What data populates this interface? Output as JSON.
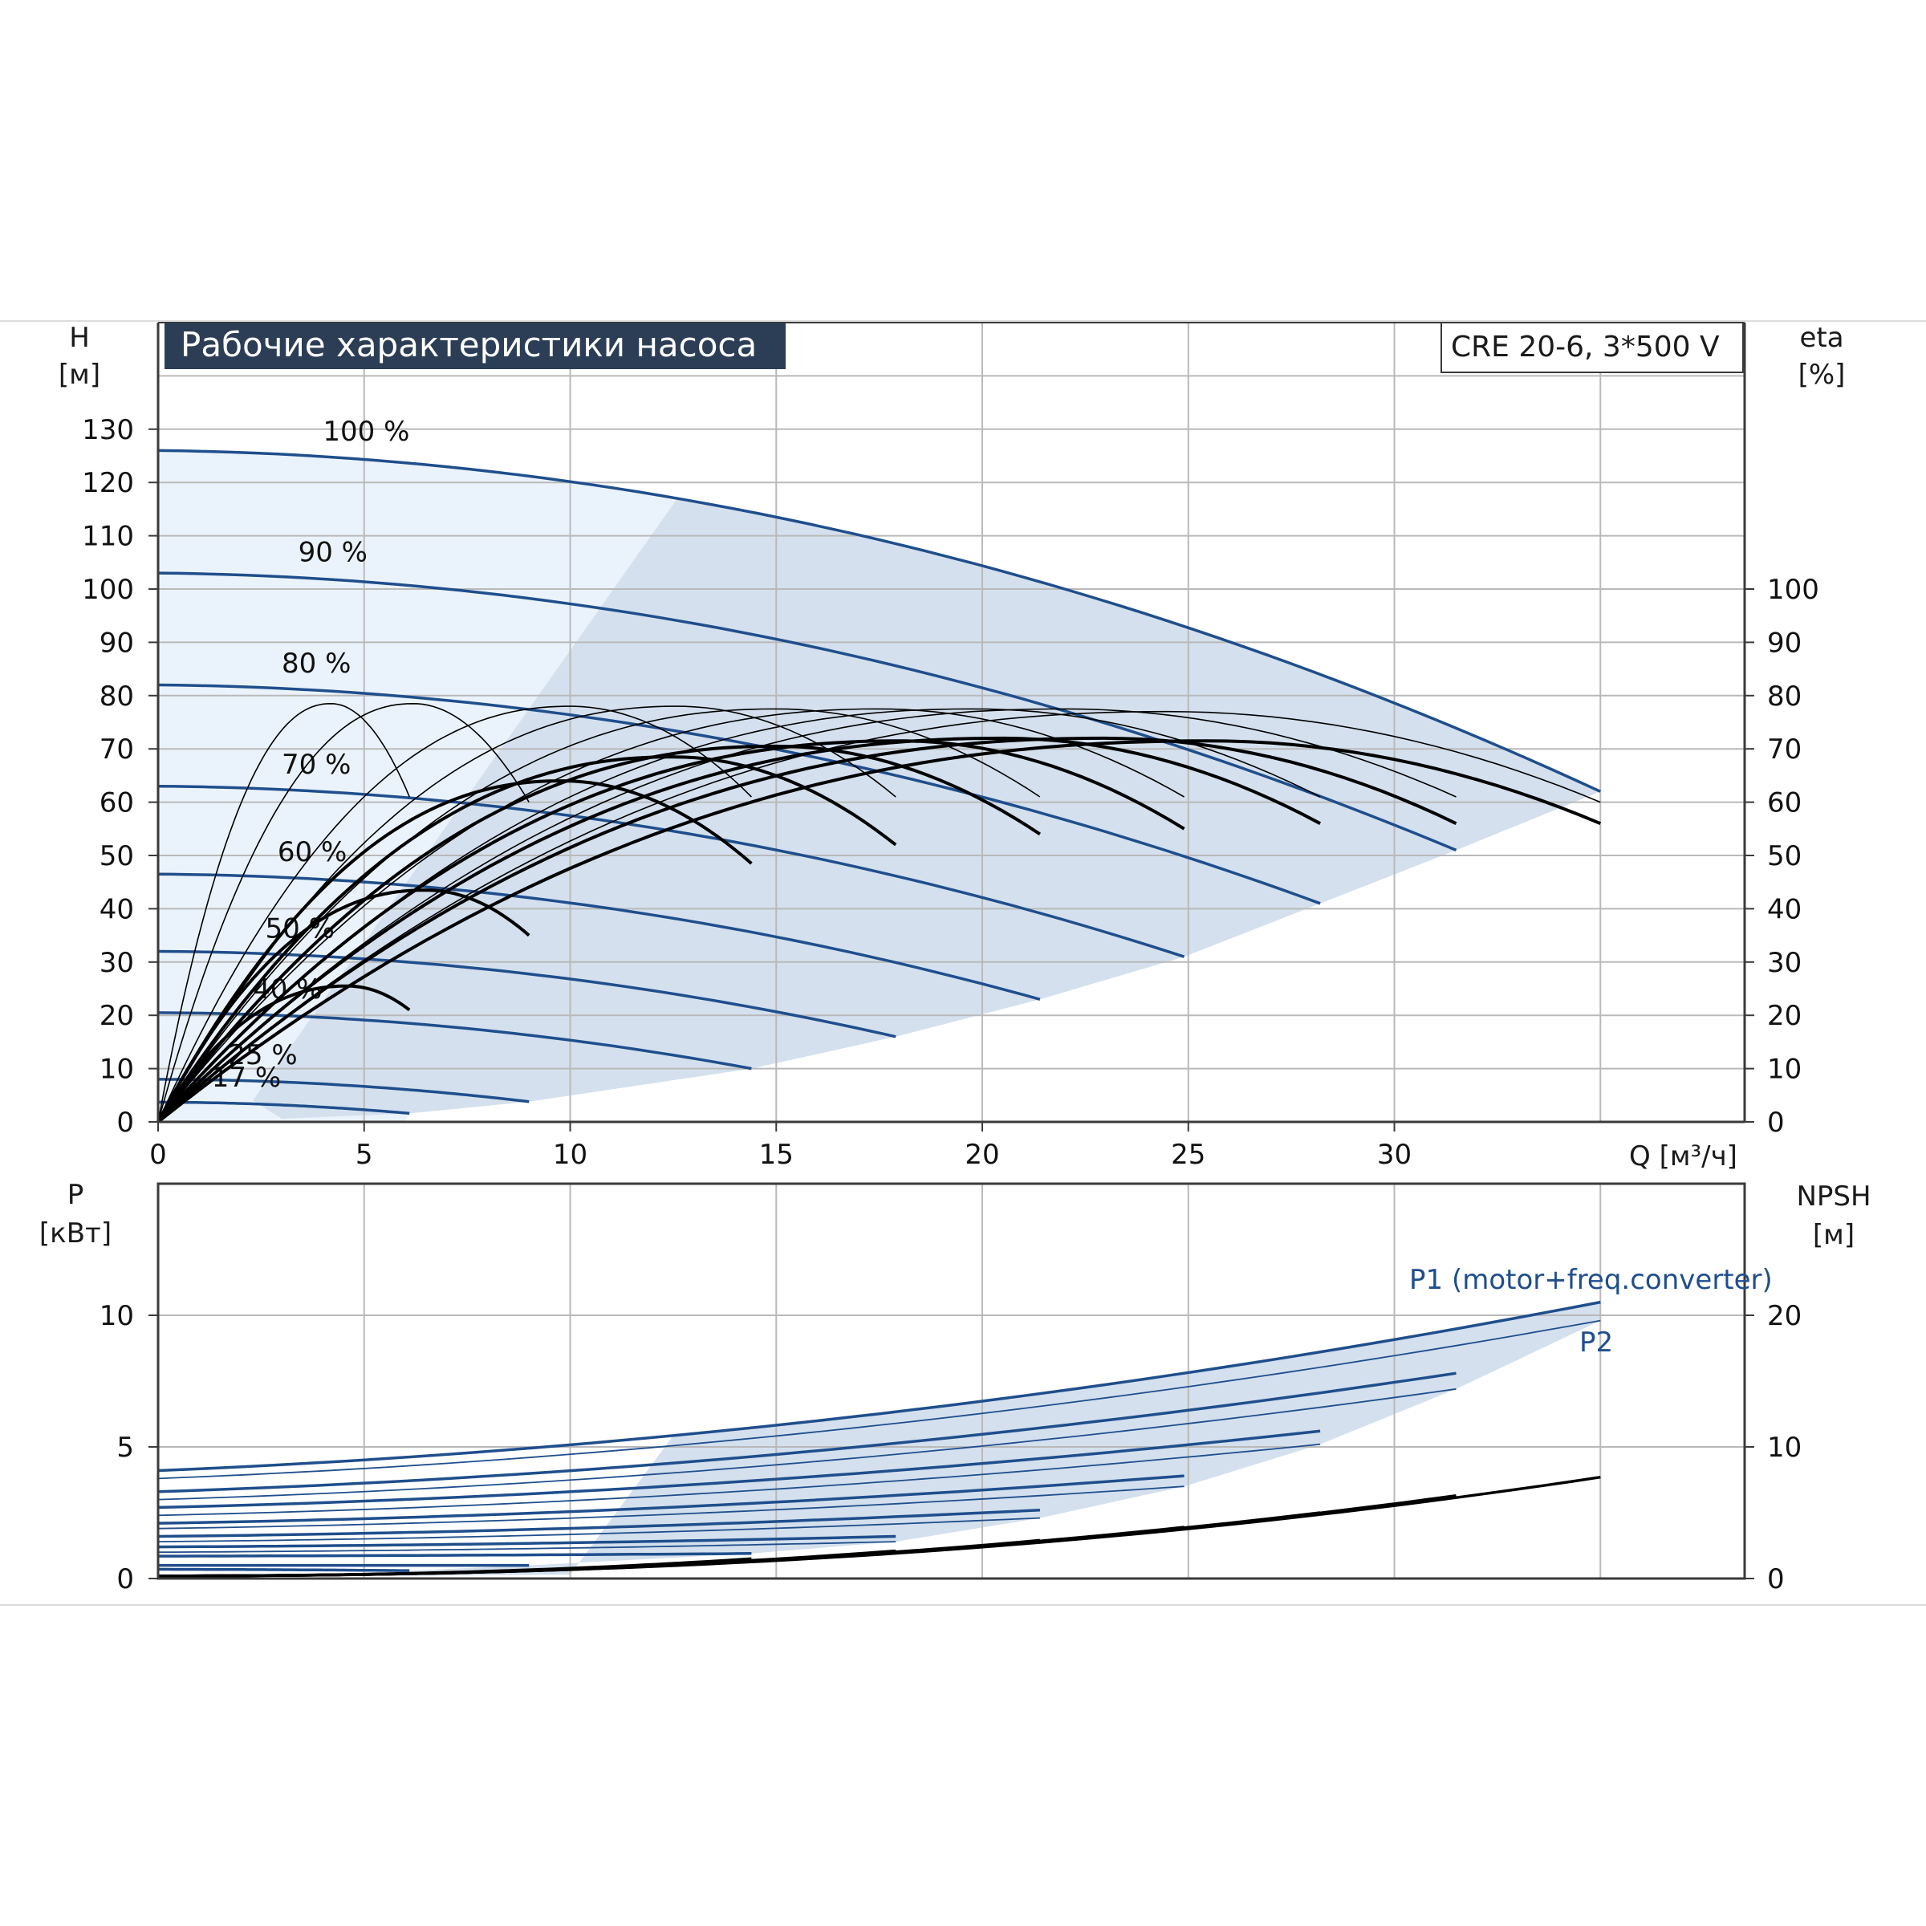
{
  "chart_data": [
    {
      "type": "line",
      "title": "Рабочие характеристики насоса",
      "subtitle": "CRE 20-6, 3*500 V",
      "xlabel": "Q [м³/ч]",
      "ylabel": "H",
      "ylabel_unit": "[м]",
      "y2label": "eta",
      "y2label_unit": "[%]",
      "xlim": [
        0,
        38.5
      ],
      "ylim": [
        0,
        150
      ],
      "y2lim": [
        0,
        150
      ],
      "xticks": [
        "0",
        "5",
        "10",
        "15",
        "20",
        "25",
        "30"
      ],
      "yticks": [
        "0",
        "10",
        "20",
        "30",
        "40",
        "50",
        "60",
        "70",
        "80",
        "90",
        "100",
        "110",
        "120",
        "130"
      ],
      "y2ticks": [
        "0",
        "10",
        "20",
        "30",
        "40",
        "50",
        "60",
        "70",
        "80",
        "90",
        "100"
      ],
      "grid": true,
      "head_curves": [
        {
          "name": "100 %",
          "shutoff": 126,
          "qmax": 35.0,
          "hend": 62
        },
        {
          "name": "90 %",
          "shutoff": 103,
          "qmax": 31.5,
          "hend": 51
        },
        {
          "name": "80 %",
          "shutoff": 82,
          "qmax": 28.2,
          "hend": 41
        },
        {
          "name": "70 %",
          "shutoff": 63,
          "qmax": 24.9,
          "hend": 31
        },
        {
          "name": "60 %",
          "shutoff": 46.5,
          "qmax": 21.4,
          "hend": 23
        },
        {
          "name": "50 %",
          "shutoff": 32,
          "qmax": 17.9,
          "hend": 16
        },
        {
          "name": "40 %",
          "shutoff": 20.5,
          "qmax": 14.4,
          "hend": 10
        },
        {
          "name": "25 %",
          "shutoff": 8,
          "qmax": 9.0,
          "hend": 3.8
        },
        {
          "name": "17 %",
          "shutoff": 3.7,
          "qmax": 6.1,
          "hend": 1.6
        }
      ],
      "efficiency_curves": [
        {
          "qmax": 6.1,
          "peak_q": 4.2,
          "peak": 78.5,
          "end": 61
        },
        {
          "qmax": 9.0,
          "peak_q": 6.2,
          "peak": 78.5,
          "end": 60
        },
        {
          "qmax": 14.4,
          "peak_q": 10.0,
          "peak": 78.0,
          "end": 61
        },
        {
          "qmax": 17.9,
          "peak_q": 12.6,
          "peak": 78.0,
          "end": 61
        },
        {
          "qmax": 21.4,
          "peak_q": 15.0,
          "peak": 77.5,
          "end": 61
        },
        {
          "qmax": 24.9,
          "peak_q": 17.5,
          "peak": 77.5,
          "end": 61
        },
        {
          "qmax": 28.2,
          "peak_q": 19.8,
          "peak": 77.5,
          "end": 61
        },
        {
          "qmax": 31.5,
          "peak_q": 22.0,
          "peak": 77.5,
          "end": 61
        },
        {
          "qmax": 35.0,
          "peak_q": 24.5,
          "peak": 77.0,
          "end": 60
        },
        {
          "qmax": 9.0,
          "peak_q": 6.5,
          "peak": 43.5,
          "end": 35,
          "bold": true
        },
        {
          "qmax": 6.1,
          "peak_q": 4.6,
          "peak": 25.5,
          "end": 21,
          "bold": true
        },
        {
          "qmax": 14.4,
          "peak_q": 9.8,
          "peak": 64.0,
          "end": 48.5,
          "bold": true
        },
        {
          "qmax": 17.9,
          "peak_q": 12.5,
          "peak": 68.5,
          "end": 52,
          "bold": true
        },
        {
          "qmax": 21.4,
          "peak_q": 15.0,
          "peak": 70.5,
          "end": 54,
          "bold": true
        },
        {
          "qmax": 24.9,
          "peak_q": 18.0,
          "peak": 71.5,
          "end": 55,
          "bold": true
        },
        {
          "qmax": 28.2,
          "peak_q": 20.5,
          "peak": 72.0,
          "end": 56,
          "bold": true
        },
        {
          "qmax": 31.5,
          "peak_q": 23.0,
          "peak": 72.0,
          "end": 56,
          "bold": true
        },
        {
          "qmax": 35.0,
          "peak_q": 25.5,
          "peak": 71.5,
          "end": 56,
          "bold": true
        }
      ]
    },
    {
      "type": "line",
      "ylabel": "P",
      "ylabel_unit": "[кВт]",
      "y2label": "NPSH",
      "y2label_unit": "[м]",
      "xlim": [
        0,
        38.5
      ],
      "ylim": [
        0,
        15
      ],
      "y2lim": [
        0,
        30
      ],
      "yticks": [
        "0",
        "5",
        "10"
      ],
      "y2ticks": [
        "0",
        "10",
        "20"
      ],
      "grid": true,
      "series_labels": [
        "P1 (motor+freq.converter)",
        "P2"
      ],
      "power_curves": [
        {
          "qmax": 35.0,
          "p_start": 4.1,
          "p_end": 10.5,
          "kind": "P1"
        },
        {
          "qmax": 35.0,
          "p_start": 3.8,
          "p_end": 9.8,
          "kind": "P2"
        },
        {
          "qmax": 31.5,
          "p_start": 3.3,
          "p_end": 7.8,
          "kind": "P1"
        },
        {
          "qmax": 31.5,
          "p_start": 3.0,
          "p_end": 7.2,
          "kind": "P2"
        },
        {
          "qmax": 28.2,
          "p_start": 2.7,
          "p_end": 5.6,
          "kind": "P1"
        },
        {
          "qmax": 28.2,
          "p_start": 2.4,
          "p_end": 5.1,
          "kind": "P2"
        },
        {
          "qmax": 24.9,
          "p_start": 2.1,
          "p_end": 3.9,
          "kind": "P1"
        },
        {
          "qmax": 24.9,
          "p_start": 1.9,
          "p_end": 3.5,
          "kind": "P2"
        },
        {
          "qmax": 21.4,
          "p_start": 1.6,
          "p_end": 2.6,
          "kind": "P1"
        },
        {
          "qmax": 21.4,
          "p_start": 1.4,
          "p_end": 2.3,
          "kind": "P2"
        },
        {
          "qmax": 17.9,
          "p_start": 1.2,
          "p_end": 1.6,
          "kind": "P1"
        },
        {
          "qmax": 17.9,
          "p_start": 1.0,
          "p_end": 1.4,
          "kind": "P2"
        },
        {
          "qmax": 14.4,
          "p_start": 0.85,
          "p_end": 0.95,
          "kind": "P1"
        },
        {
          "qmax": 9.0,
          "p_start": 0.5,
          "p_end": 0.5,
          "kind": "P1"
        },
        {
          "qmax": 6.1,
          "p_start": 0.35,
          "p_end": 0.3,
          "kind": "P1"
        }
      ],
      "npsh_curves": [
        {
          "qmax": 35.0,
          "npsh_end": 7.7
        },
        {
          "qmax": 31.5,
          "npsh_end": 6.3
        },
        {
          "qmax": 28.2,
          "npsh_end": 5.0
        },
        {
          "qmax": 24.9,
          "npsh_end": 3.9
        },
        {
          "qmax": 21.4,
          "npsh_end": 2.9
        },
        {
          "qmax": 17.9,
          "npsh_end": 2.1
        },
        {
          "qmax": 14.4,
          "npsh_end": 1.5
        }
      ]
    }
  ],
  "colors": {
    "head_curve": "#1f4e8c",
    "eff_curve": "#000000",
    "region_fill": "#d4e0ee",
    "region_light": "#eaf3fb",
    "grid": "#b9b9b9",
    "title_bg": "#2c3e55",
    "axis": "#3a3a3a"
  }
}
